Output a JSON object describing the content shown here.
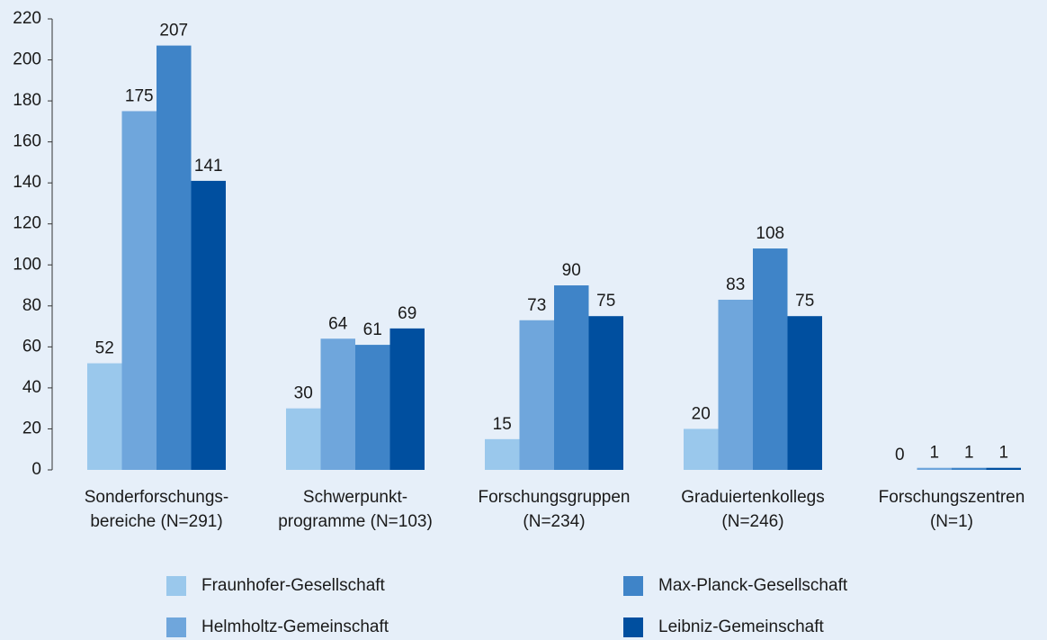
{
  "chart_data": {
    "type": "bar",
    "categories": [
      "Sonderforschungs-\nbereiche (N=291)",
      "Schwerpunkt-\nprogramme (N=103)",
      "Forschungsgruppen\n(N=234)",
      "Graduiertenkollegs\n(N=246)",
      "Forschungszentren\n(N=1)"
    ],
    "series": [
      {
        "name": "Fraunhofer-Gesellschaft",
        "color": "#9ac8ec",
        "values": [
          52,
          30,
          15,
          20,
          0
        ]
      },
      {
        "name": "Helmholtz-Gemeinschaft",
        "color": "#6fa6dc",
        "values": [
          175,
          64,
          73,
          83,
          1
        ]
      },
      {
        "name": "Max-Planck-Gesellschaft",
        "color": "#3f84c8",
        "values": [
          207,
          61,
          90,
          108,
          1
        ]
      },
      {
        "name": "Leibniz-Gemeinschaft",
        "color": "#004f9f",
        "values": [
          141,
          69,
          75,
          75,
          1
        ]
      }
    ],
    "ylim": [
      0,
      220
    ],
    "yticks": [
      0,
      20,
      40,
      60,
      80,
      100,
      120,
      140,
      160,
      180,
      200,
      220
    ],
    "grid": false,
    "legend": "bottom"
  }
}
